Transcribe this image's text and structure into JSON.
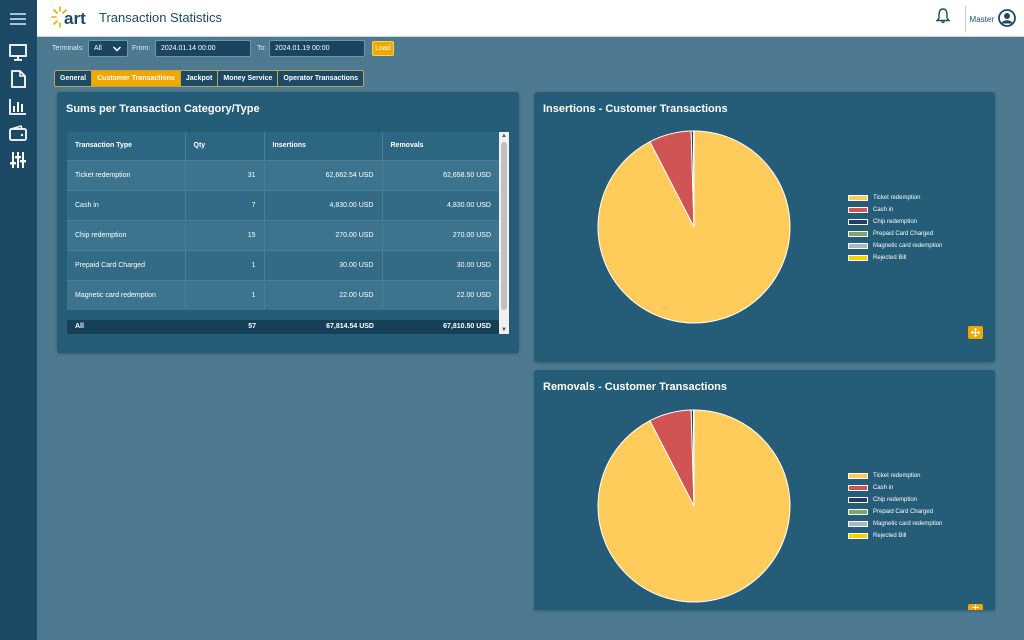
{
  "app": {
    "title": "Transaction Statistics",
    "logo_text": "art",
    "user": "Master"
  },
  "sidebar": {
    "items": [
      {
        "icon": "menu-icon"
      },
      {
        "icon": "monitor-icon"
      },
      {
        "icon": "document-icon"
      },
      {
        "icon": "bar-chart-icon"
      },
      {
        "icon": "wallet-icon"
      },
      {
        "icon": "sliders-icon"
      }
    ]
  },
  "filters": {
    "terminals_label": "Terminals:",
    "terminals_value": "All",
    "from_label": "From:",
    "from_value": "2024.01.14 00:00",
    "to_label": "To:",
    "to_value": "2024.01.19 00:00",
    "load_label": "Load"
  },
  "tabs": [
    {
      "label": "General",
      "active": false
    },
    {
      "label": "Customer Transactions",
      "active": true
    },
    {
      "label": "Jackpot",
      "active": false
    },
    {
      "label": "Money Service",
      "active": false
    },
    {
      "label": "Operator Transactions",
      "active": false
    }
  ],
  "sums_panel": {
    "title": "Sums per Transaction Category/Type",
    "columns": [
      "Transaction Type",
      "Qty",
      "Insertions",
      "Removals"
    ],
    "rows": [
      {
        "type": "Ticket redemption",
        "qty": "31",
        "insertions": "62,662.54 USD",
        "removals": "62,658.50 USD"
      },
      {
        "type": "Cash in",
        "qty": "7",
        "insertions": "4,830.00 USD",
        "removals": "4,830.00 USD"
      },
      {
        "type": "Chip redemption",
        "qty": "15",
        "insertions": "270.00 USD",
        "removals": "270.00 USD"
      },
      {
        "type": "Prepaid Card Charged",
        "qty": "1",
        "insertions": "30.00 USD",
        "removals": "30.00 USD"
      },
      {
        "type": "Magnetic card redemption",
        "qty": "1",
        "insertions": "22.00 USD",
        "removals": "22.00 USD"
      }
    ],
    "total": {
      "type": "All",
      "qty": "57",
      "insertions": "67,814.54 USD",
      "removals": "67,810.50 USD"
    }
  },
  "legend": [
    {
      "label": "Ticket redemption",
      "color": "#ffcc5c"
    },
    {
      "label": "Cash in",
      "color": "#d05454"
    },
    {
      "label": "Chip redemption",
      "color": "#1e3f66"
    },
    {
      "label": "Prepaid Card Charged",
      "color": "#7aa86a"
    },
    {
      "label": "Magnetic card redemption",
      "color": "#a9b8c9"
    },
    {
      "label": "Rejected Bill",
      "color": "#f4d400"
    }
  ],
  "chart_data": [
    {
      "type": "pie",
      "title": "Insertions - Customer Transactions",
      "categories": [
        "Ticket redemption",
        "Cash in",
        "Chip redemption",
        "Prepaid Card Charged",
        "Magnetic card redemption",
        "Rejected Bill"
      ],
      "values": [
        62662.54,
        4830.0,
        270.0,
        30.0,
        22.0,
        0
      ],
      "colors": [
        "#ffcc5c",
        "#d05454",
        "#1e3f66",
        "#7aa86a",
        "#a9b8c9",
        "#f4d400"
      ],
      "legend_position": "right"
    },
    {
      "type": "pie",
      "title": "Removals - Customer Transactions",
      "categories": [
        "Ticket redemption",
        "Cash in",
        "Chip redemption",
        "Prepaid Card Charged",
        "Magnetic card redemption",
        "Rejected Bill"
      ],
      "values": [
        62658.5,
        4830.0,
        270.0,
        30.0,
        22.0,
        0
      ],
      "colors": [
        "#ffcc5c",
        "#d05454",
        "#1e3f66",
        "#7aa86a",
        "#a9b8c9",
        "#f4d400"
      ],
      "legend_position": "right"
    }
  ]
}
